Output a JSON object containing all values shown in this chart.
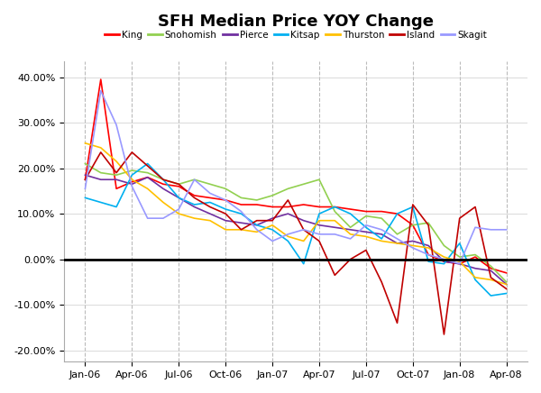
{
  "title": "SFH Median Price YOY Change",
  "x_labels": [
    "Jan-06",
    "Apr-06",
    "Jul-06",
    "Oct-06",
    "Jan-07",
    "Apr-07",
    "Jul-07",
    "Oct-07",
    "Jan-08",
    "Apr-08"
  ],
  "ylim": [
    -0.225,
    0.435
  ],
  "yticks": [
    -0.2,
    -0.1,
    0.0,
    0.1,
    0.2,
    0.3,
    0.4
  ],
  "series": [
    {
      "name": "King",
      "color": "#FF0000",
      "data": [
        0.175,
        0.395,
        0.155,
        0.17,
        0.18,
        0.165,
        0.16,
        0.14,
        0.135,
        0.13,
        0.12,
        0.12,
        0.115,
        0.115,
        0.12,
        0.115,
        0.115,
        0.11,
        0.105,
        0.105,
        0.1,
        0.075,
        0.01,
        -0.005,
        -0.01,
        0.005,
        -0.02,
        -0.03
      ]
    },
    {
      "name": "Snohomish",
      "color": "#92D050",
      "data": [
        0.21,
        0.19,
        0.185,
        0.195,
        0.19,
        0.175,
        0.165,
        0.175,
        0.165,
        0.155,
        0.135,
        0.13,
        0.14,
        0.155,
        0.165,
        0.175,
        0.105,
        0.07,
        0.095,
        0.09,
        0.055,
        0.075,
        0.08,
        0.03,
        0.005,
        0.01,
        -0.015,
        -0.05
      ]
    },
    {
      "name": "Pierce",
      "color": "#7030A0",
      "data": [
        0.185,
        0.175,
        0.175,
        0.165,
        0.18,
        0.155,
        0.135,
        0.115,
        0.1,
        0.085,
        0.08,
        0.075,
        0.09,
        0.1,
        0.085,
        0.075,
        0.07,
        0.065,
        0.06,
        0.055,
        0.035,
        0.04,
        0.03,
        -0.005,
        -0.01,
        -0.02,
        -0.025,
        -0.055
      ]
    },
    {
      "name": "Kitsap",
      "color": "#00B0F0",
      "data": [
        0.135,
        0.125,
        0.115,
        0.185,
        0.21,
        0.175,
        0.135,
        0.12,
        0.125,
        0.11,
        0.1,
        0.075,
        0.065,
        0.04,
        -0.01,
        0.1,
        0.115,
        0.1,
        0.07,
        0.045,
        0.1,
        0.115,
        -0.005,
        -0.01,
        0.035,
        -0.045,
        -0.08,
        -0.075
      ]
    },
    {
      "name": "Thurston",
      "color": "#FFC000",
      "data": [
        0.255,
        0.245,
        0.215,
        0.175,
        0.155,
        0.125,
        0.1,
        0.09,
        0.085,
        0.065,
        0.065,
        0.06,
        0.075,
        0.05,
        0.04,
        0.085,
        0.085,
        0.055,
        0.05,
        0.04,
        0.035,
        0.03,
        0.025,
        0.005,
        -0.005,
        -0.04,
        -0.045,
        -0.055
      ]
    },
    {
      "name": "Island",
      "color": "#C00000",
      "data": [
        0.175,
        0.235,
        0.19,
        0.235,
        0.205,
        0.175,
        0.165,
        0.135,
        0.115,
        0.1,
        0.065,
        0.085,
        0.085,
        0.13,
        0.065,
        0.04,
        -0.035,
        0.0,
        0.02,
        -0.05,
        -0.14,
        0.12,
        0.075,
        -0.165,
        0.09,
        0.115,
        -0.04,
        -0.065
      ]
    },
    {
      "name": "Skagit",
      "color": "#9999FF",
      "data": [
        0.155,
        0.37,
        0.295,
        0.16,
        0.09,
        0.09,
        0.11,
        0.175,
        0.145,
        0.13,
        0.105,
        0.065,
        0.04,
        0.055,
        0.065,
        0.055,
        0.055,
        0.045,
        0.075,
        0.065,
        0.045,
        0.025,
        0.01,
        0.0,
        -0.01,
        0.07,
        0.065,
        0.065
      ]
    }
  ]
}
